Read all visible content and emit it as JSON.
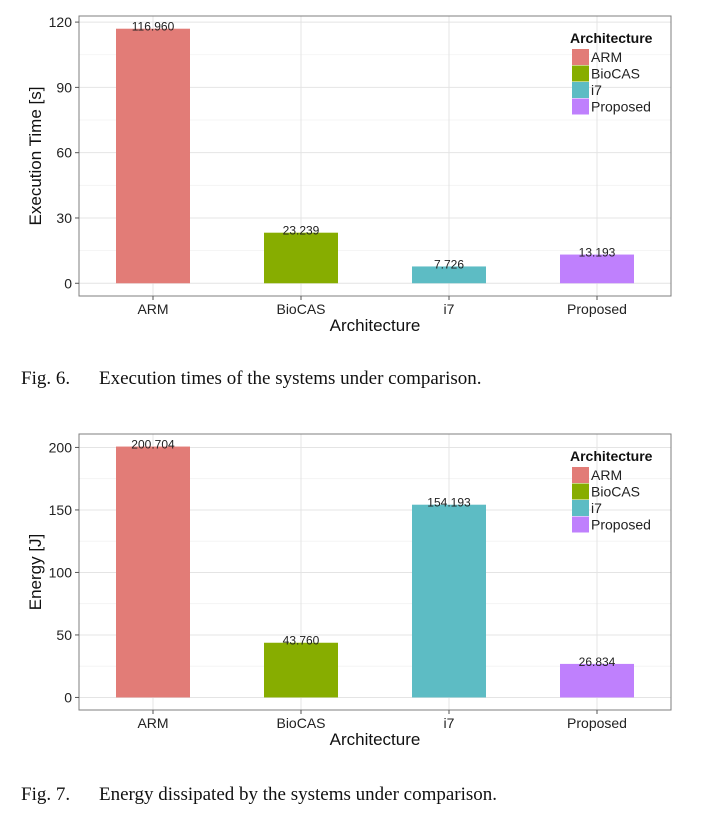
{
  "chart_data": [
    {
      "type": "bar",
      "categories": [
        "ARM",
        "BioCAS",
        "i7",
        "Proposed"
      ],
      "values": [
        116.96,
        23.239,
        7.726,
        13.193
      ],
      "data_labels": [
        "116.960",
        "23.239",
        "7.726",
        "13.193"
      ],
      "colors": [
        "#e27c77",
        "#87ad00",
        "#5dbcc4",
        "#bf80fd"
      ],
      "xlabel": "Architecture",
      "ylabel": "Execution Time [s]",
      "ylim": [
        -5.85,
        122.8
      ],
      "yticks": [
        0,
        30,
        60,
        90,
        120
      ],
      "grid": true,
      "legend": {
        "title": "Architecture",
        "items": [
          "ARM",
          "BioCAS",
          "i7",
          "Proposed"
        ],
        "placement": "top-right"
      },
      "caption_number": "Fig. 6.",
      "caption_text": "Execution times of the systems under comparison."
    },
    {
      "type": "bar",
      "categories": [
        "ARM",
        "BioCAS",
        "i7",
        "Proposed"
      ],
      "values": [
        200.704,
        43.76,
        154.193,
        26.834
      ],
      "data_labels": [
        "200.704",
        "43.760",
        "154.193",
        "26.834"
      ],
      "colors": [
        "#e27c77",
        "#87ad00",
        "#5dbcc4",
        "#bf80fd"
      ],
      "xlabel": "Architecture",
      "ylabel": "Energy [J]",
      "ylim": [
        -10.04,
        210.75
      ],
      "yticks": [
        0,
        50,
        100,
        150,
        200
      ],
      "grid": true,
      "legend": {
        "title": "Architecture",
        "items": [
          "ARM",
          "BioCAS",
          "i7",
          "Proposed"
        ],
        "placement": "top-right"
      },
      "caption_number": "Fig. 7.",
      "caption_text": "Energy dissipated by the systems under comparison."
    }
  ]
}
